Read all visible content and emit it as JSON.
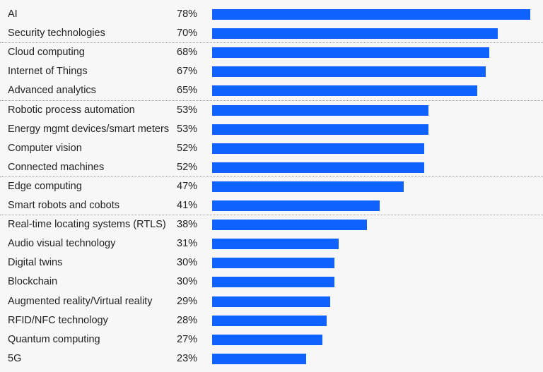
{
  "chart_data": {
    "type": "bar",
    "orientation": "horizontal",
    "title": "",
    "xlabel": "",
    "ylabel": "",
    "xlim": [
      0,
      78
    ],
    "value_suffix": "%",
    "bar_color": "#0f62fe",
    "groups_separated_after": [
      1,
      4,
      8,
      10
    ],
    "categories": [
      "AI",
      "Security technologies",
      "Cloud computing",
      "Internet of Things",
      "Advanced analytics",
      "Robotic process automation",
      "Energy mgmt devices/smart meters",
      "Computer vision",
      "Connected machines",
      "Edge computing",
      "Smart robots and cobots",
      "Real-time locating systems (RTLS)",
      "Audio visual technology",
      "Digital twins",
      "Blockchain",
      "Augmented reality/Virtual reality",
      "RFID/NFC technology",
      "Quantum computing",
      "5G"
    ],
    "values": [
      78,
      70,
      68,
      67,
      65,
      53,
      53,
      52,
      52,
      47,
      41,
      38,
      31,
      30,
      30,
      29,
      28,
      27,
      23
    ],
    "value_labels": [
      "78%",
      "70%",
      "68%",
      "67%",
      "65%",
      "53%",
      "53%",
      "52%",
      "52%",
      "47%",
      "41%",
      "38%",
      "31%",
      "30%",
      "30%",
      "29%",
      "28%",
      "27%",
      "23%"
    ]
  }
}
